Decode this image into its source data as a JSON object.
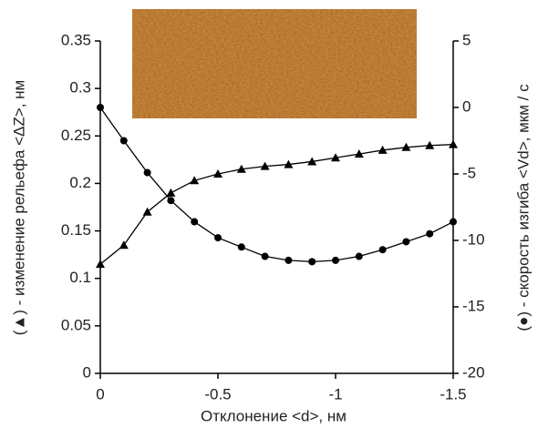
{
  "chart_data": {
    "type": "line",
    "xlabel": "Отклонение <d>, нм",
    "ylabel": "(▲) - изменение рельефа <ΔZ>, нм",
    "y2label": "(●) - скорость изгиба <Vd>, мкм / с",
    "x": [
      0,
      -0.1,
      -0.2,
      -0.3,
      -0.4,
      -0.5,
      -0.6,
      -0.7,
      -0.8,
      -0.9,
      -1.0,
      -1.1,
      -1.2,
      -1.3,
      -1.4,
      -1.5
    ],
    "xlim": [
      0,
      -1.5
    ],
    "xticks": [
      0,
      -0.5,
      -1,
      -1.5
    ],
    "ylim": [
      0,
      0.35
    ],
    "yticks": [
      0,
      0.05,
      0.1,
      0.15,
      0.2,
      0.25,
      0.3,
      0.35
    ],
    "y2lim": [
      -20,
      5
    ],
    "y2ticks": [
      -20,
      -15,
      -10,
      -5,
      0,
      5
    ],
    "series": [
      {
        "marker": "triangle",
        "color": "#000000",
        "values": [
          0.115,
          0.135,
          0.17,
          0.19,
          0.203,
          0.21,
          0.215,
          0.218,
          0.22,
          0.223,
          0.227,
          0.231,
          0.235,
          0.238,
          0.24,
          0.241
        ]
      },
      {
        "marker": "circle",
        "color": "#000000",
        "axis": "y2",
        "values": [
          0,
          -2.5,
          -4.9,
          -7.0,
          -8.6,
          -9.8,
          -10.5,
          -11.2,
          -11.5,
          -11.6,
          -11.5,
          -11.2,
          -10.7,
          -10.1,
          -9.5,
          -8.6
        ]
      }
    ]
  }
}
